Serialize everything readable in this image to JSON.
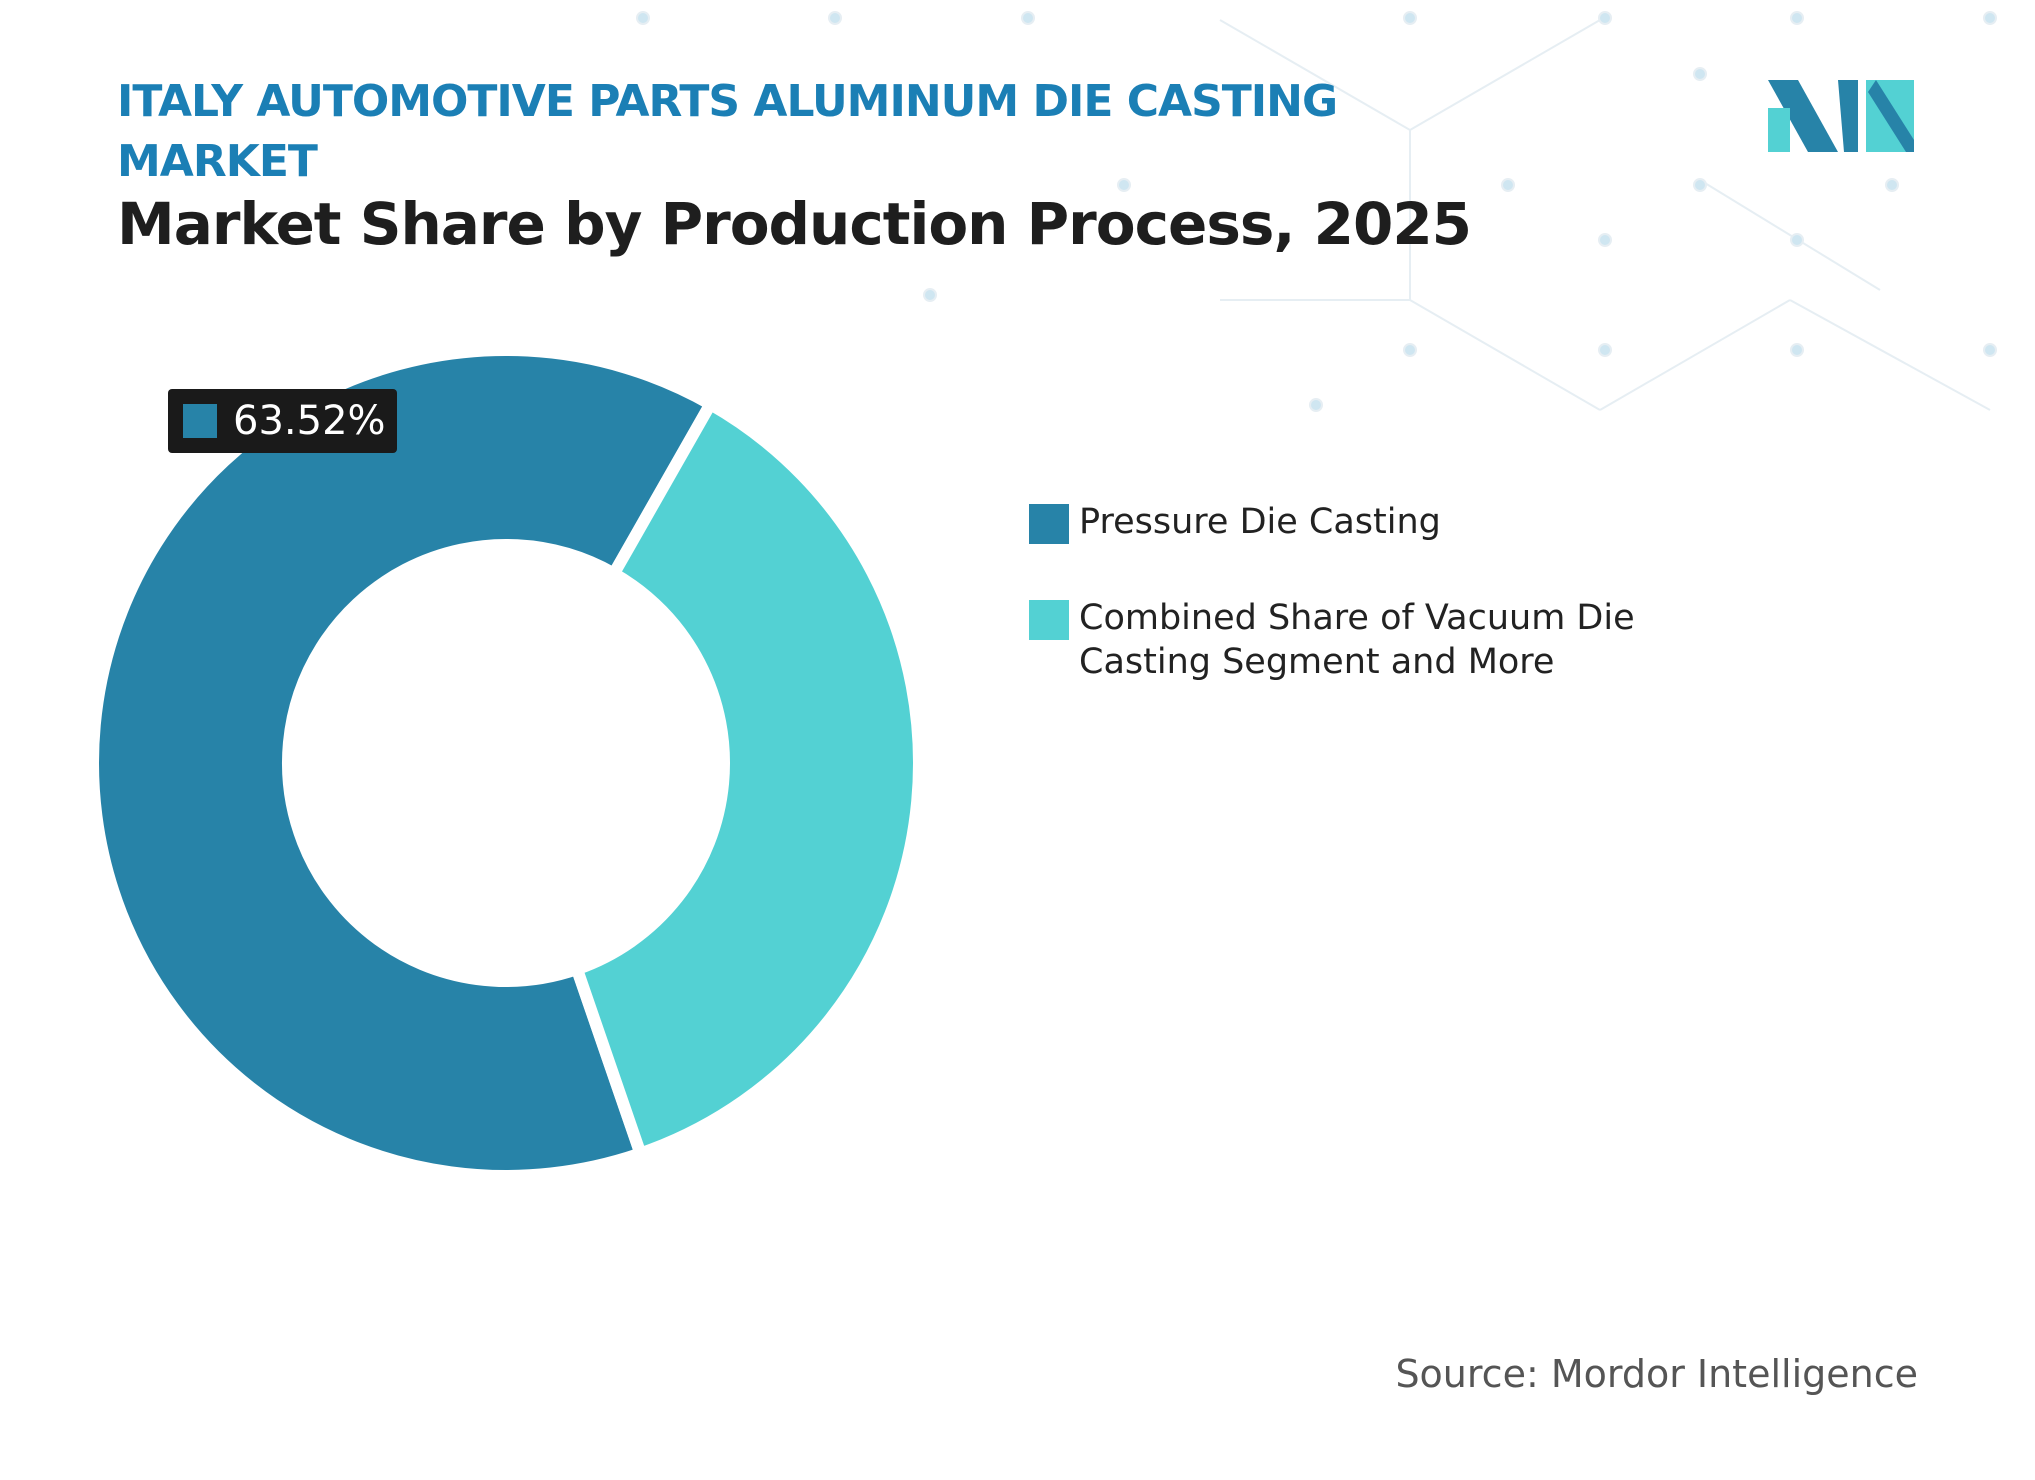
{
  "chart_data": {
    "type": "donut",
    "title": "ITALY AUTOMOTIVE PARTS ALUMINUM DIE CASTING MARKET",
    "subtitle": "Market Share by Production Process, 2025",
    "categories": [
      "Pressure Die Casting",
      "Combined Share of Vacuum Die Casting Segment and More"
    ],
    "values": [
      63.52,
      36.48
    ],
    "value_labels": [
      "63.52%",
      null
    ],
    "colors": [
      "#2783a8",
      "#53d1d3"
    ],
    "source": "Source: Mordor Intelligence"
  }
}
